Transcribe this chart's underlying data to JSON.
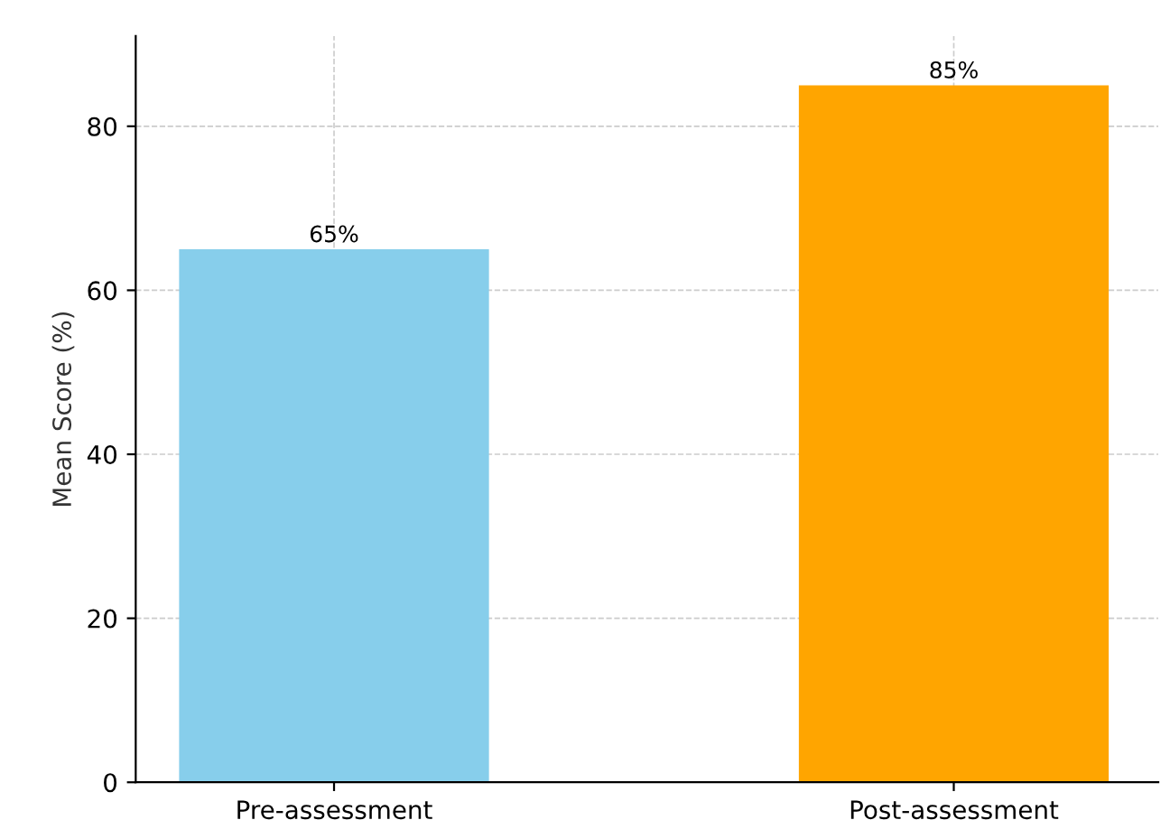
{
  "chart_data": {
    "type": "bar",
    "ylabel": "Mean Score (%)",
    "categories": [
      "Pre-assessment",
      "Post-assessment"
    ],
    "values": [
      65,
      85
    ],
    "colors": [
      "#87ceeb",
      "#ffa500"
    ],
    "value_labels": [
      "65%",
      "85%"
    ],
    "ylim": [
      0,
      91
    ],
    "yticks": [
      0,
      20,
      40,
      60,
      80
    ],
    "grid": true
  }
}
